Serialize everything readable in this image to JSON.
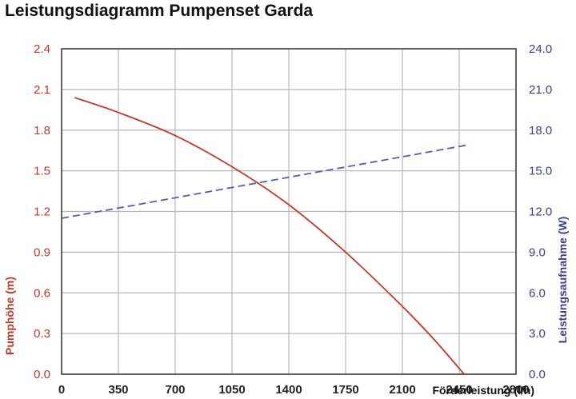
{
  "chart_data": {
    "type": "line",
    "title": "Leistungsdiagramm Pumpenset Garda",
    "xlabel": "Förderleistung (l/h)",
    "ylabel": "Pumphöhe (m)",
    "ylabel_right": "Leistungsaufnahme (W)",
    "xlim": [
      0,
      2800
    ],
    "ylim": [
      0,
      2.4
    ],
    "ylim_right": [
      0,
      24
    ],
    "x_ticks": [
      "0",
      "350",
      "700",
      "1050",
      "1400",
      "1750",
      "2100",
      "2450",
      "2800"
    ],
    "y_ticks_left": [
      "0.0",
      "0.3",
      "0.6",
      "0.9",
      "1.2",
      "1.5",
      "1.8",
      "2.1",
      "2.4"
    ],
    "y_ticks_right": [
      "0.0",
      "3.0",
      "6.0",
      "9.0",
      "12.0",
      "15.0",
      "18.0",
      "21.0",
      "24.0"
    ],
    "grid": true,
    "colors": {
      "left_axis": "#c0392b",
      "right_axis": "#3b3f8f",
      "pump_curve": "#c0392b",
      "power_curve": "#5b5bb0"
    },
    "series": [
      {
        "axis": "left",
        "style": "solid",
        "x": [
          80,
          350,
          700,
          1050,
          1400,
          1750,
          2100,
          2300,
          2480
        ],
        "y": [
          2.04,
          1.93,
          1.76,
          1.53,
          1.25,
          0.9,
          0.5,
          0.25,
          0.0
        ]
      },
      {
        "axis": "right",
        "style": "dashed",
        "x": [
          0,
          2500
        ],
        "y": [
          11.5,
          16.9
        ]
      }
    ]
  }
}
